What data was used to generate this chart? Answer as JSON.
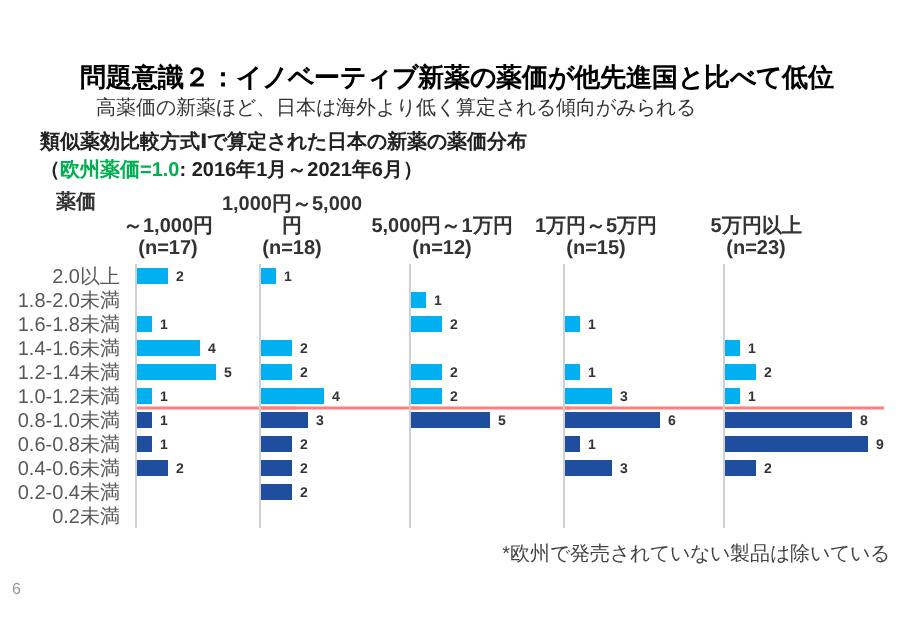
{
  "chart_data": [
    {
      "type": "bar",
      "orientation": "horizontal",
      "title": "～1,000円\n(n=17)",
      "ylabel": "薬価",
      "categories": [
        "2.0以上",
        "1.8-2.0未満",
        "1.6-1.8未満",
        "1.4-1.6未満",
        "1.2-1.4未満",
        "1.0-1.2未満",
        "0.8-1.0未満",
        "0.6-0.8未満",
        "0.4-0.6未満",
        "0.2-0.4未満",
        "0.2未満"
      ],
      "values": [
        2,
        null,
        1,
        4,
        5,
        1,
        1,
        1,
        2,
        null,
        null
      ],
      "colors": [
        "#00b0f0",
        "#00b0f0",
        "#00b0f0",
        "#00b0f0",
        "#00b0f0",
        "#00b0f0",
        "#1f4e9e",
        "#1f4e9e",
        "#1f4e9e",
        "#1f4e9e",
        "#1f4e9e"
      ],
      "xlim": [
        0,
        10
      ],
      "data_labels": true,
      "tick_labels": "y",
      "ref_lines": [
        {
          "axis": "y",
          "value": "1.0-1.2未満",
          "color": "#ff8080"
        }
      ],
      "annotations": [
        "問題意識２：イノベーティブ新薬の薬価が他先進国と比べて低位",
        "高薬価の新薬ほど、日本は海外より低く算定される傾向がみられる",
        "類似薬効比較方式Ⅰで算定された日本の新薬の薬価分布",
        "（",
        "欧州薬価=1.0",
        ": 2016年1月～2021年6月）",
        "*欧州で発売されていない製品は除いている",
        "6"
      ]
    },
    {
      "type": "bar",
      "orientation": "horizontal",
      "title": "1,000円～5,000円\n(n=18)",
      "categories": [
        "2.0以上",
        "1.8-2.0未満",
        "1.6-1.8未満",
        "1.4-1.6未満",
        "1.2-1.4未満",
        "1.0-1.2未満",
        "0.8-1.0未満",
        "0.6-0.8未満",
        "0.4-0.6未満",
        "0.2-0.4未満",
        "0.2未満"
      ],
      "values": [
        1,
        null,
        null,
        2,
        2,
        4,
        3,
        2,
        2,
        2,
        null
      ],
      "colors": [
        "#00b0f0",
        "#00b0f0",
        "#00b0f0",
        "#00b0f0",
        "#00b0f0",
        "#00b0f0",
        "#1f4e9e",
        "#1f4e9e",
        "#1f4e9e",
        "#1f4e9e",
        "#1f4e9e"
      ],
      "xlim": [
        0,
        10
      ],
      "data_labels": true,
      "tick_labels": false,
      "ref_lines": [
        {
          "axis": "y",
          "value": "1.0-1.2未満",
          "color": "#ff8080"
        }
      ]
    },
    {
      "type": "bar",
      "orientation": "horizontal",
      "title": "5,000円～1万円\n(n=12)",
      "categories": [
        "2.0以上",
        "1.8-2.0未満",
        "1.6-1.8未満",
        "1.4-1.6未満",
        "1.2-1.4未満",
        "1.0-1.2未満",
        "0.8-1.0未満",
        "0.6-0.8未満",
        "0.4-0.6未満",
        "0.2-0.4未満",
        "0.2未満"
      ],
      "values": [
        null,
        1,
        2,
        null,
        2,
        2,
        5,
        null,
        null,
        null,
        null
      ],
      "colors": [
        "#00b0f0",
        "#00b0f0",
        "#00b0f0",
        "#00b0f0",
        "#00b0f0",
        "#00b0f0",
        "#1f4e9e",
        "#1f4e9e",
        "#1f4e9e",
        "#1f4e9e",
        "#1f4e9e"
      ],
      "xlim": [
        0,
        10
      ],
      "data_labels": true,
      "tick_labels": false,
      "ref_lines": [
        {
          "axis": "y",
          "value": "1.0-1.2未満",
          "color": "#ff8080"
        }
      ]
    },
    {
      "type": "bar",
      "orientation": "horizontal",
      "title": "1万円～5万円\n(n=15)",
      "categories": [
        "2.0以上",
        "1.8-2.0未満",
        "1.6-1.8未満",
        "1.4-1.6未満",
        "1.2-1.4未満",
        "1.0-1.2未満",
        "0.8-1.0未満",
        "0.6-0.8未満",
        "0.4-0.6未満",
        "0.2-0.4未満",
        "0.2未満"
      ],
      "values": [
        null,
        null,
        1,
        null,
        1,
        3,
        6,
        1,
        3,
        null,
        null
      ],
      "colors": [
        "#00b0f0",
        "#00b0f0",
        "#00b0f0",
        "#00b0f0",
        "#00b0f0",
        "#00b0f0",
        "#1f4e9e",
        "#1f4e9e",
        "#1f4e9e",
        "#1f4e9e",
        "#1f4e9e"
      ],
      "xlim": [
        0,
        10
      ],
      "data_labels": true,
      "tick_labels": false,
      "ref_lines": [
        {
          "axis": "y",
          "value": "1.0-1.2未満",
          "color": "#ff8080"
        }
      ]
    },
    {
      "type": "bar",
      "orientation": "horizontal",
      "title": "5万円以上\n(n=23)",
      "categories": [
        "2.0以上",
        "1.8-2.0未満",
        "1.6-1.8未満",
        "1.4-1.6未満",
        "1.2-1.4未満",
        "1.0-1.2未満",
        "0.8-1.0未満",
        "0.6-0.8未満",
        "0.4-0.6未満",
        "0.2-0.4未満",
        "0.2未満"
      ],
      "values": [
        null,
        null,
        null,
        1,
        2,
        1,
        8,
        9,
        2,
        null,
        null
      ],
      "colors": [
        "#00b0f0",
        "#00b0f0",
        "#00b0f0",
        "#00b0f0",
        "#00b0f0",
        "#00b0f0",
        "#1f4e9e",
        "#1f4e9e",
        "#1f4e9e",
        "#1f4e9e",
        "#1f4e9e"
      ],
      "xlim": [
        0,
        10
      ],
      "data_labels": true,
      "tick_labels": false,
      "ref_lines": [
        {
          "axis": "y",
          "value": "1.0-1.2未満",
          "color": "#ff8080"
        }
      ]
    }
  ]
}
